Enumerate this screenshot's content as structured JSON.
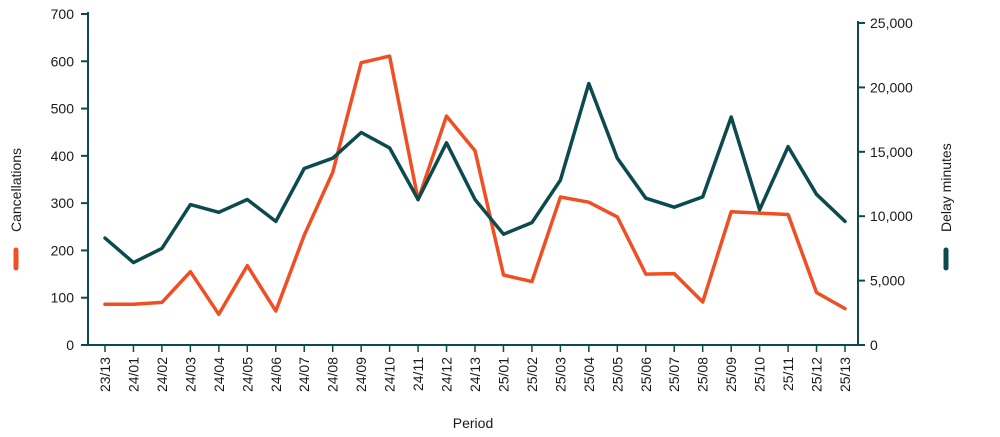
{
  "chart_data": {
    "type": "line",
    "xlabel": "Period",
    "categories": [
      "23/13",
      "24/01",
      "24/02",
      "24/03",
      "24/04",
      "24/05",
      "24/06",
      "24/07",
      "24/08",
      "24/09",
      "24/10",
      "24/11",
      "24/12",
      "24/13",
      "25/01",
      "25/02",
      "25/03",
      "25/04",
      "25/05",
      "25/06",
      "25/07",
      "25/08",
      "25/09",
      "25/10",
      "25/11",
      "25/12",
      "25/13"
    ],
    "y_left": {
      "label": "Cancellations",
      "ylim": [
        0,
        700
      ],
      "ticks": [
        "0",
        "100",
        "200",
        "300",
        "400",
        "500",
        "600",
        "700"
      ],
      "tick_values": [
        0,
        100,
        200,
        300,
        400,
        500,
        600,
        700
      ]
    },
    "y_right": {
      "label": "Delay minutes",
      "ylim": [
        0,
        25000
      ],
      "ticks": [
        "0",
        "5,000",
        "10,000",
        "15,000",
        "20,000",
        "25,000"
      ],
      "tick_values": [
        0,
        5000,
        10000,
        15000,
        20000,
        25000
      ]
    },
    "series": [
      {
        "name": "Cancellations",
        "axis": "left",
        "color": "#f04e23",
        "values": [
          86,
          86,
          90,
          155,
          65,
          168,
          72,
          232,
          365,
          597,
          611,
          307,
          484,
          411,
          148,
          134,
          313,
          302,
          271,
          150,
          151,
          91,
          282,
          279,
          276,
          111,
          77
        ]
      },
      {
        "name": "Delay minutes",
        "axis": "right",
        "color": "#0d4a4e",
        "values": [
          8300,
          6400,
          7500,
          10900,
          10300,
          11300,
          9600,
          13700,
          14500,
          16500,
          15300,
          11300,
          15700,
          11300,
          8600,
          9500,
          12800,
          20300,
          14500,
          11400,
          10700,
          11500,
          17700,
          10500,
          15400,
          11700,
          9600
        ]
      }
    ],
    "axis_color": "#0d4a4e",
    "grid": false,
    "legend": "axis-titles"
  }
}
